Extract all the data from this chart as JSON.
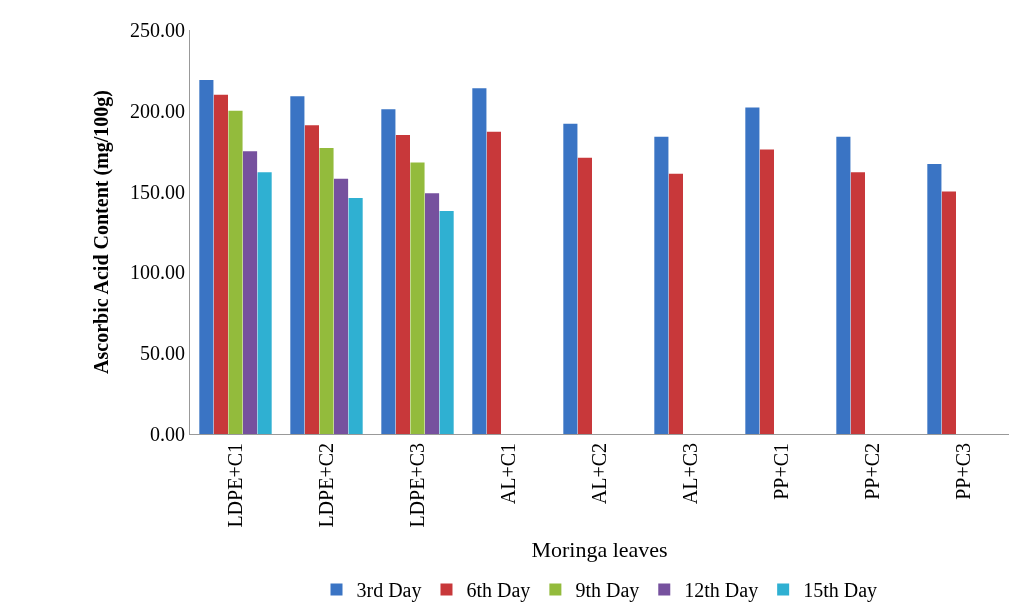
{
  "chart_data": {
    "type": "bar",
    "xlabel": "Moringa leaves",
    "ylabel": "Ascorbic Acid Content (mg/100g)",
    "categories": [
      "LDPE+C1",
      "LDPE+C2",
      "LDPE+C3",
      "AL+C1",
      "AL+C2",
      "AL+C3",
      "PP+C1",
      "PP+C2",
      "PP+C3"
    ],
    "series": [
      {
        "name": "3rd Day",
        "color": "#3a74c4",
        "values": [
          219,
          209,
          201,
          214,
          192,
          184,
          202,
          184,
          167
        ]
      },
      {
        "name": "6th Day",
        "color": "#c8383a",
        "values": [
          210,
          191,
          185,
          187,
          171,
          161,
          176,
          162,
          150
        ]
      },
      {
        "name": "9th Day",
        "color": "#93bb3c",
        "values": [
          200,
          177,
          168,
          null,
          null,
          null,
          null,
          null,
          null
        ]
      },
      {
        "name": "12th Day",
        "color": "#76519e",
        "values": [
          175,
          158,
          149,
          null,
          null,
          null,
          null,
          null,
          null
        ]
      },
      {
        "name": "15th Day",
        "color": "#2fb0d2",
        "values": [
          162,
          146,
          138,
          null,
          null,
          null,
          null,
          null,
          null
        ]
      }
    ],
    "ylim": [
      0,
      250
    ],
    "yticks": [
      {
        "value": 0,
        "label": "0.00"
      },
      {
        "value": 50,
        "label": "50.00"
      },
      {
        "value": 100,
        "label": "100.00"
      },
      {
        "value": 150,
        "label": "150.00"
      },
      {
        "value": 200,
        "label": "200.00"
      },
      {
        "value": 250,
        "label": "250.00"
      }
    ],
    "legend": "bottom"
  }
}
